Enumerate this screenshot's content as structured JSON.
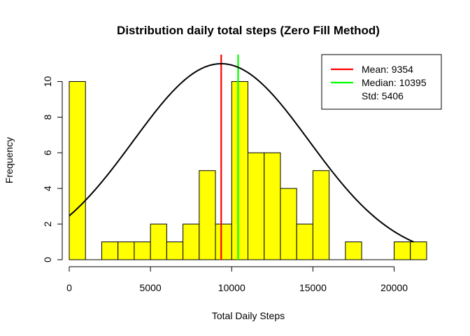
{
  "chart_data": {
    "type": "bar",
    "title": "Distribution daily total steps (Zero Fill Method)",
    "xlabel": "Total Daily Steps",
    "ylabel": "Frequency",
    "xlim": [
      0,
      22000
    ],
    "ylim": [
      0,
      11
    ],
    "bin_width": 1000,
    "bins": [
      {
        "x0": 0,
        "x1": 1000,
        "count": 10
      },
      {
        "x0": 1000,
        "x1": 2000,
        "count": 0
      },
      {
        "x0": 2000,
        "x1": 3000,
        "count": 1
      },
      {
        "x0": 3000,
        "x1": 4000,
        "count": 1
      },
      {
        "x0": 4000,
        "x1": 5000,
        "count": 1
      },
      {
        "x0": 5000,
        "x1": 6000,
        "count": 2
      },
      {
        "x0": 6000,
        "x1": 7000,
        "count": 1
      },
      {
        "x0": 7000,
        "x1": 8000,
        "count": 2
      },
      {
        "x0": 8000,
        "x1": 9000,
        "count": 5
      },
      {
        "x0": 9000,
        "x1": 10000,
        "count": 2
      },
      {
        "x0": 10000,
        "x1": 11000,
        "count": 10
      },
      {
        "x0": 11000,
        "x1": 12000,
        "count": 6
      },
      {
        "x0": 12000,
        "x1": 13000,
        "count": 6
      },
      {
        "x0": 13000,
        "x1": 14000,
        "count": 4
      },
      {
        "x0": 14000,
        "x1": 15000,
        "count": 2
      },
      {
        "x0": 15000,
        "x1": 16000,
        "count": 5
      },
      {
        "x0": 16000,
        "x1": 17000,
        "count": 0
      },
      {
        "x0": 17000,
        "x1": 18000,
        "count": 1
      },
      {
        "x0": 18000,
        "x1": 19000,
        "count": 0
      },
      {
        "x0": 19000,
        "x1": 20000,
        "count": 0
      },
      {
        "x0": 20000,
        "x1": 21000,
        "count": 1
      },
      {
        "x0": 21000,
        "x1": 22000,
        "count": 1
      }
    ],
    "x_ticks": [
      0,
      5000,
      10000,
      15000,
      20000
    ],
    "x_tick_labels": [
      "0",
      "5000",
      "10000",
      "15000",
      "20000"
    ],
    "y_ticks": [
      0,
      2,
      4,
      6,
      8,
      10
    ],
    "y_tick_labels": [
      "0",
      "2",
      "4",
      "6",
      "8",
      "10"
    ],
    "bar_color": "#ffff00",
    "vertical_lines": [
      {
        "x": 9354,
        "color": "#ff0000"
      },
      {
        "x": 10395,
        "color": "#00ff00"
      }
    ],
    "normal_curve": {
      "mean": 9354,
      "sd": 5406,
      "peak": 11,
      "x_range": [
        0,
        21194
      ],
      "color": "#000000"
    },
    "legend": {
      "position": "top-right",
      "entries": [
        {
          "label": "Mean: 9354",
          "color": "#ff0000"
        },
        {
          "label": "Median: 10395",
          "color": "#00ff00"
        },
        {
          "label": "Std: 5406",
          "color": null
        }
      ]
    }
  }
}
